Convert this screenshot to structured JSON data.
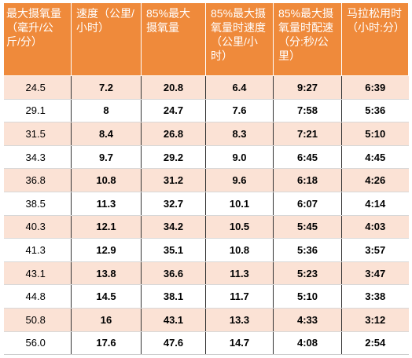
{
  "table": {
    "headers": [
      "最大摄氧量（毫升/公斤/分）",
      "速度（公里/小时）",
      "85%最大摄氧量",
      "85%最大摄氧量时速度（公里/小时）",
      "85%最大摄氧量时配速（分:秒/公里）",
      "马拉松用时（小时:分）"
    ],
    "rows": [
      [
        "24.5",
        "7.2",
        "20.8",
        "6.4",
        "9:27",
        "6:39"
      ],
      [
        "29.1",
        "8",
        "24.7",
        "7.6",
        "7:58",
        "5:36"
      ],
      [
        "31.5",
        "8.4",
        "26.8",
        "8.3",
        "7:21",
        "5:10"
      ],
      [
        "34.3",
        "9.7",
        "29.2",
        "9.0",
        "6:45",
        "4:45"
      ],
      [
        "36.8",
        "10.8",
        "31.2",
        "9.6",
        "6:18",
        "4:26"
      ],
      [
        "38.5",
        "11.3",
        "32.7",
        "10.1",
        "6:07",
        "4:14"
      ],
      [
        "40.3",
        "12.1",
        "34.2",
        "10.5",
        "5:45",
        "4:03"
      ],
      [
        "41.3",
        "12.9",
        "35.1",
        "10.8",
        "5:36",
        "3:57"
      ],
      [
        "43.1",
        "13.8",
        "36.6",
        "11.3",
        "5:23",
        "3:47"
      ],
      [
        "44.8",
        "14.5",
        "38.1",
        "11.7",
        "5:10",
        "3:38"
      ],
      [
        "50.8",
        "16",
        "43.1",
        "13.3",
        "4:33",
        "3:12"
      ],
      [
        "56.0",
        "17.6",
        "47.6",
        "14.7",
        "4:08",
        "2:54"
      ]
    ]
  },
  "colors": {
    "header_bg": "#ef8a3b",
    "header_text": "#ffffff",
    "band_row": "#fbe2d5",
    "plain_row": "#ffffff"
  }
}
